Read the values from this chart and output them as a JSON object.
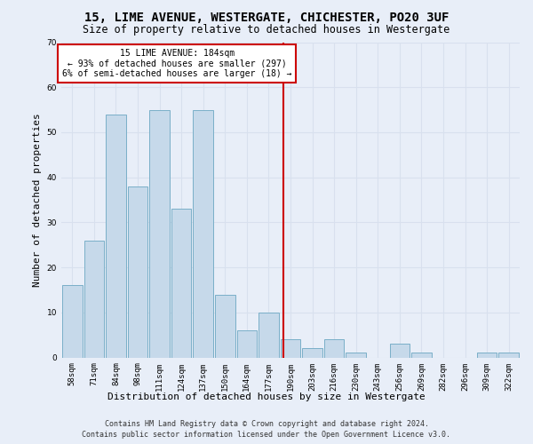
{
  "title1": "15, LIME AVENUE, WESTERGATE, CHICHESTER, PO20 3UF",
  "title2": "Size of property relative to detached houses in Westergate",
  "xlabel": "Distribution of detached houses by size in Westergate",
  "ylabel": "Number of detached properties",
  "categories": [
    "58sqm",
    "71sqm",
    "84sqm",
    "98sqm",
    "111sqm",
    "124sqm",
    "137sqm",
    "150sqm",
    "164sqm",
    "177sqm",
    "190sqm",
    "203sqm",
    "216sqm",
    "230sqm",
    "243sqm",
    "256sqm",
    "269sqm",
    "282sqm",
    "296sqm",
    "309sqm",
    "322sqm"
  ],
  "values": [
    16,
    26,
    54,
    38,
    55,
    33,
    55,
    14,
    6,
    10,
    4,
    2,
    4,
    1,
    0,
    3,
    1,
    0,
    0,
    1,
    1
  ],
  "bar_color": "#c6d9ea",
  "bar_edge_color": "#7aafc8",
  "annotation_box_text": "15 LIME AVENUE: 184sqm\n← 93% of detached houses are smaller (297)\n6% of semi-detached houses are larger (18) →",
  "annotation_box_color": "#ffffff",
  "annotation_box_edge_color": "#cc0000",
  "vline_color": "#cc0000",
  "vline_x": 9.69,
  "ylim": [
    0,
    70
  ],
  "yticks": [
    0,
    10,
    20,
    30,
    40,
    50,
    60,
    70
  ],
  "grid_color": "#d8e0ee",
  "bg_color": "#e8eef8",
  "footer1": "Contains HM Land Registry data © Crown copyright and database right 2024.",
  "footer2": "Contains public sector information licensed under the Open Government Licence v3.0.",
  "title1_fontsize": 10,
  "title2_fontsize": 8.5,
  "ylabel_fontsize": 8,
  "xlabel_fontsize": 8,
  "tick_fontsize": 6.5,
  "annotation_fontsize": 7,
  "footer_fontsize": 6
}
